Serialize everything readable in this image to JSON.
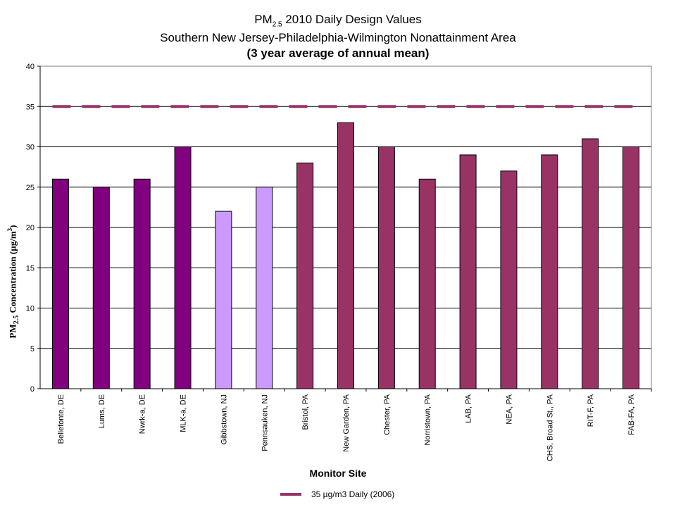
{
  "title": {
    "line1_prefix": "PM",
    "line1_sub": "2.5",
    "line1_suffix": " 2010 Daily Design Values",
    "line2": "Southern New Jersey-Philadelphia-Wilmington Nonattainment Area",
    "line3": "(3 year average of annual mean)"
  },
  "axis": {
    "ylabel_prefix": "PM",
    "ylabel_sub": "2.5",
    "ylabel_main": " Concentration (µg/m",
    "ylabel_sup": "3",
    "ylabel_end": ")",
    "xlabel": "Monitor Site"
  },
  "legend": {
    "label": "35 µg/m3 Daily (2006)",
    "color": "#993366"
  },
  "chart_data": {
    "type": "bar",
    "categories": [
      "Bellefonte, DE",
      "Lums, DE",
      "Nwrk-a, DE",
      "MLK-a, DE",
      "Gibbstown, NJ",
      "Pennsauken, NJ",
      "Bristol, PA",
      "New Garden, PA",
      "Chester, PA",
      "Norristown, PA",
      "LAB, PA",
      "NEA, PA",
      "CHS, Broad St., PA",
      "RIT-F, PA",
      "FAB-FA, PA"
    ],
    "values": [
      26,
      25,
      26,
      30,
      22,
      25,
      28,
      33,
      30,
      26,
      29,
      27,
      29,
      31,
      30
    ],
    "bar_colors": [
      "#800080",
      "#800080",
      "#800080",
      "#800080",
      "#cc99ff",
      "#cc99ff",
      "#993366",
      "#993366",
      "#993366",
      "#993366",
      "#993366",
      "#993366",
      "#993366",
      "#993366",
      "#993366"
    ],
    "reference_line": {
      "value": 35,
      "name": "35 µg/m3 Daily (2006)",
      "color": "#993366"
    },
    "ylim": [
      0,
      40
    ],
    "yticks": [
      0,
      5,
      10,
      15,
      20,
      25,
      30,
      35,
      40
    ],
    "grid": true,
    "legend_position": "bottom"
  }
}
